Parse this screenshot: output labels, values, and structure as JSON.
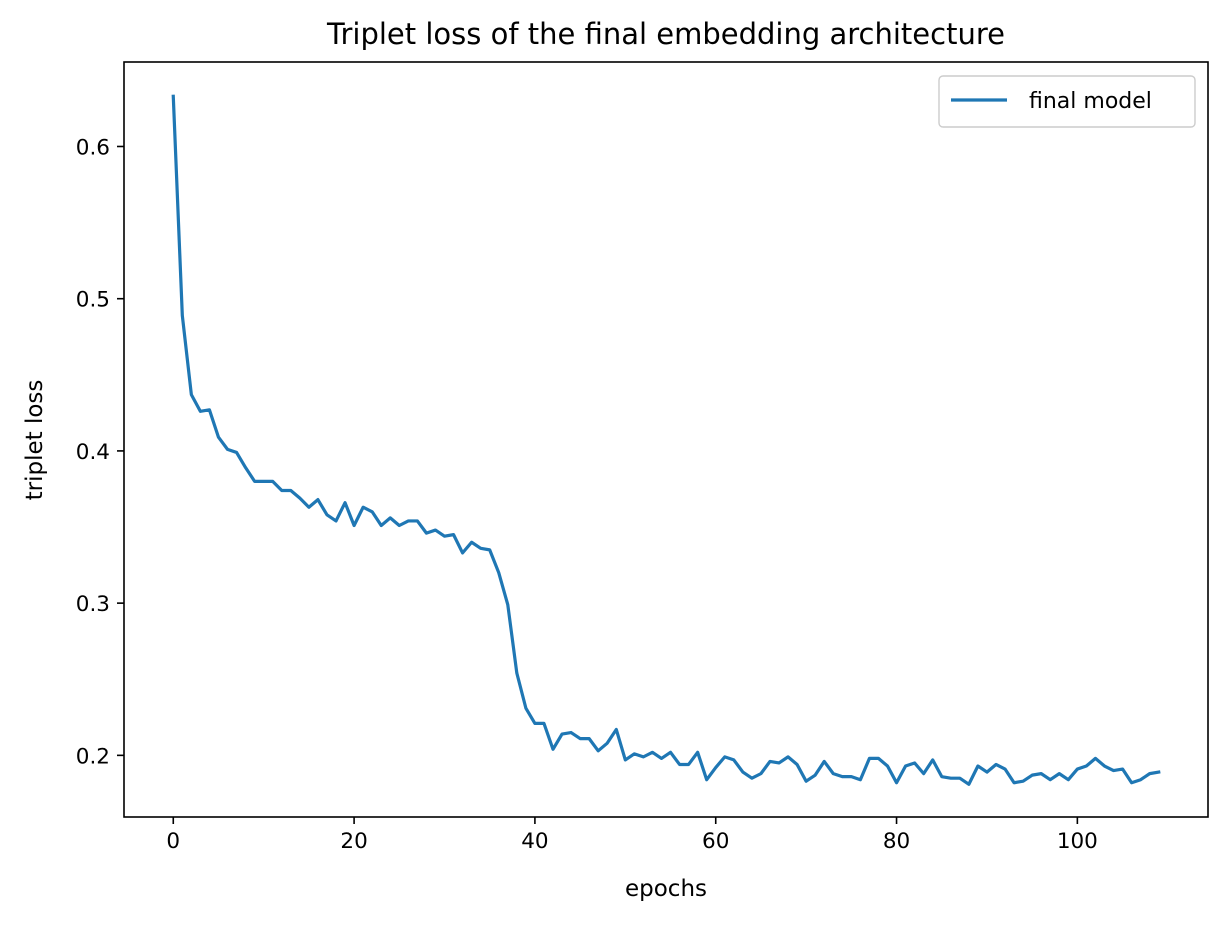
{
  "chart_data": {
    "type": "line",
    "title": "Triplet loss of the final embedding architecture",
    "xlabel": "epochs",
    "ylabel": "triplet loss",
    "xlim": [
      -5.45,
      114.45
    ],
    "ylim": [
      0.1595,
      0.6555
    ],
    "xticks": [
      0,
      20,
      40,
      60,
      80,
      100
    ],
    "xtick_labels": [
      "0",
      "20",
      "40",
      "60",
      "80",
      "100"
    ],
    "yticks": [
      0.2,
      0.3,
      0.4,
      0.5,
      0.6
    ],
    "ytick_labels": [
      "0.2",
      "0.3",
      "0.4",
      "0.5",
      "0.6"
    ],
    "grid": false,
    "legend_position": "top-right",
    "series": [
      {
        "name": "final model",
        "color": "#1f77b4",
        "x": [
          0,
          1,
          2,
          3,
          4,
          5,
          6,
          7,
          8,
          9,
          10,
          11,
          12,
          13,
          14,
          15,
          16,
          17,
          18,
          19,
          20,
          21,
          22,
          23,
          24,
          25,
          26,
          27,
          28,
          29,
          30,
          31,
          32,
          33,
          34,
          35,
          36,
          37,
          38,
          39,
          40,
          41,
          42,
          43,
          44,
          45,
          46,
          47,
          48,
          49,
          50,
          51,
          52,
          53,
          54,
          55,
          56,
          57,
          58,
          59,
          60,
          61,
          62,
          63,
          64,
          65,
          66,
          67,
          68,
          69,
          70,
          71,
          72,
          73,
          74,
          75,
          76,
          77,
          78,
          79,
          80,
          81,
          82,
          83,
          84,
          85,
          86,
          87,
          88,
          89,
          90,
          91,
          92,
          93,
          94,
          95,
          96,
          97,
          98,
          99,
          100,
          101,
          102,
          103,
          104,
          105,
          106,
          107,
          108,
          109
        ],
        "values": [
          0.633,
          0.489,
          0.437,
          0.426,
          0.427,
          0.409,
          0.401,
          0.399,
          0.389,
          0.38,
          0.38,
          0.38,
          0.374,
          0.374,
          0.369,
          0.363,
          0.368,
          0.358,
          0.354,
          0.366,
          0.351,
          0.363,
          0.36,
          0.351,
          0.356,
          0.351,
          0.354,
          0.354,
          0.346,
          0.348,
          0.344,
          0.345,
          0.333,
          0.34,
          0.336,
          0.335,
          0.32,
          0.299,
          0.254,
          0.231,
          0.221,
          0.221,
          0.204,
          0.214,
          0.215,
          0.211,
          0.211,
          0.203,
          0.208,
          0.217,
          0.197,
          0.201,
          0.199,
          0.202,
          0.198,
          0.202,
          0.194,
          0.194,
          0.202,
          0.184,
          0.192,
          0.199,
          0.197,
          0.189,
          0.185,
          0.188,
          0.196,
          0.195,
          0.199,
          0.194,
          0.183,
          0.187,
          0.196,
          0.188,
          0.186,
          0.186,
          0.184,
          0.198,
          0.198,
          0.193,
          0.182,
          0.193,
          0.195,
          0.188,
          0.197,
          0.186,
          0.185,
          0.185,
          0.181,
          0.193,
          0.189,
          0.194,
          0.191,
          0.182,
          0.183,
          0.187,
          0.188,
          0.184,
          0.188,
          0.184,
          0.191,
          0.193,
          0.198,
          0.193,
          0.19,
          0.191,
          0.182,
          0.184,
          0.188,
          0.189
        ]
      }
    ]
  }
}
